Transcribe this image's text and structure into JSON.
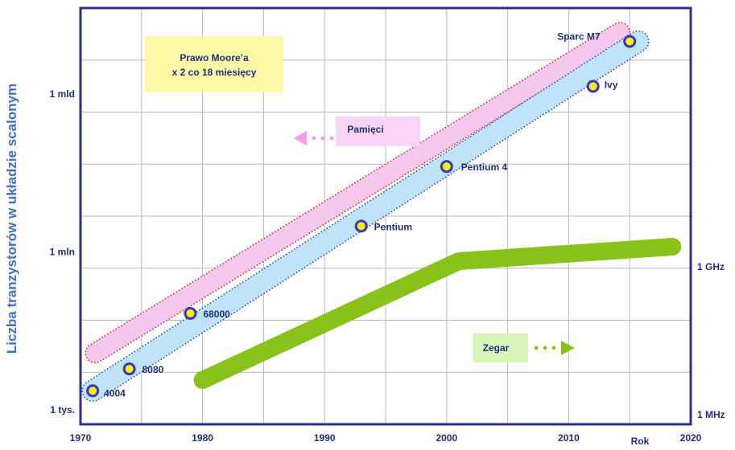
{
  "chart_data": {
    "type": "scatter",
    "ylabel": "Liczba tranzystorów w układzie scalonym",
    "xlabel": "Rok",
    "xlim": [
      1970,
      2020
    ],
    "x_ticks": [
      "1970",
      "1980",
      "1990",
      "2000",
      "2010",
      "2020"
    ],
    "y_scale": "log",
    "y_ticks_left": [
      {
        "value": 1000,
        "label": "1 tys."
      },
      {
        "value": 1000000,
        "label": "1 mln"
      },
      {
        "value": 1000000000,
        "label": "1 mld"
      }
    ],
    "y_ticks_right": [
      {
        "label": "1 MHz"
      },
      {
        "label": "1 GHz"
      }
    ],
    "processors": [
      {
        "name": "4004",
        "year": 1971,
        "transistors": 2300
      },
      {
        "name": "8080",
        "year": 1974,
        "transistors": 6000
      },
      {
        "name": "68000",
        "year": 1979,
        "transistors": 68000
      },
      {
        "name": "Pentium",
        "year": 1993,
        "transistors": 3100000
      },
      {
        "name": "Pentium 4",
        "year": 2000,
        "transistors": 42000000
      },
      {
        "name": "Ivy",
        "year": 2012,
        "transistors": 1400000000
      },
      {
        "name": "Sparc M7",
        "year": 2015,
        "transistors": 10000000000
      }
    ],
    "annotations": {
      "moore_box_line1": "Prawo Moore’a",
      "moore_box_line2": "x 2 co 18 miesięcy",
      "memory_label": "Pamięci",
      "clock_label": "Zegar"
    },
    "colors": {
      "axis_frame": "#2b2f8f",
      "grid": "#b8b8b8",
      "processor_band": "#bfe3f7",
      "memory_band": "#f7c8ee",
      "memory_band_border": "#e02020",
      "clock_line": "#88c21b",
      "marker_fill": "#ffee00",
      "marker_stroke": "#3437c9",
      "moore_box": "#fcf8a6",
      "memory_box": "#fbd5f5",
      "clock_box": "#d9f5b8"
    }
  }
}
